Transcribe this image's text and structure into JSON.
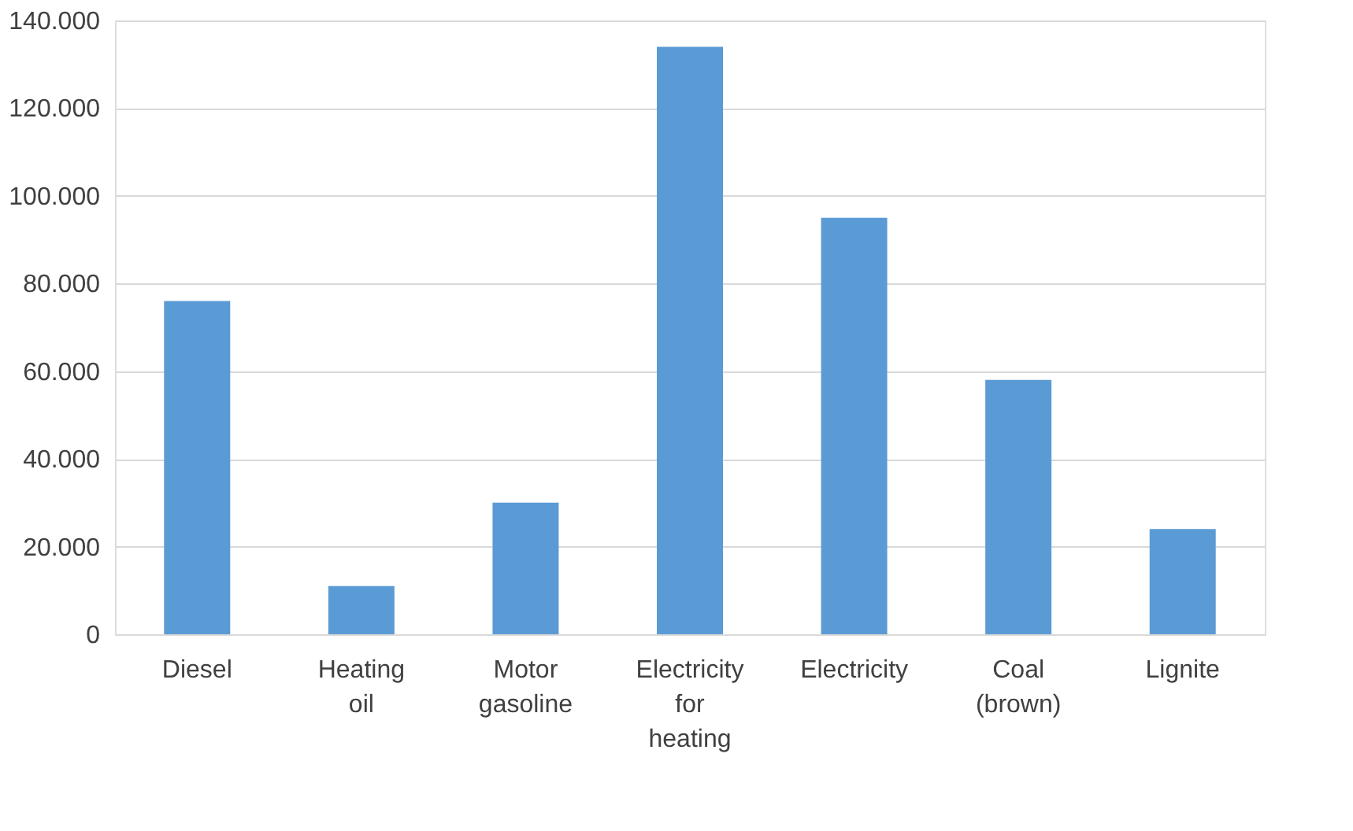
{
  "chart_data": {
    "type": "bar",
    "categories": [
      "Diesel",
      "Heating oil",
      "Motor gasoline",
      "Electricity for heating",
      "Electricity",
      "Coal (brown)",
      "Lignite"
    ],
    "values": [
      76000,
      11000,
      30000,
      134000,
      95000,
      58000,
      24000
    ],
    "color": "#5b9bd5",
    "ylim": [
      0,
      140000
    ],
    "yticks": [
      0,
      {
        "value": 20000,
        "label": "20.000"
      },
      {
        "value": 40000,
        "label": "40.000"
      },
      {
        "value": 60000,
        "label": "60.000"
      },
      {
        "value": 80000,
        "label": "80.000"
      },
      {
        "value": 100000,
        "label": "100.000"
      },
      {
        "value": 120000,
        "label": "120.000"
      },
      {
        "value": 140000,
        "label": "140.000"
      }
    ],
    "grid": "y"
  }
}
